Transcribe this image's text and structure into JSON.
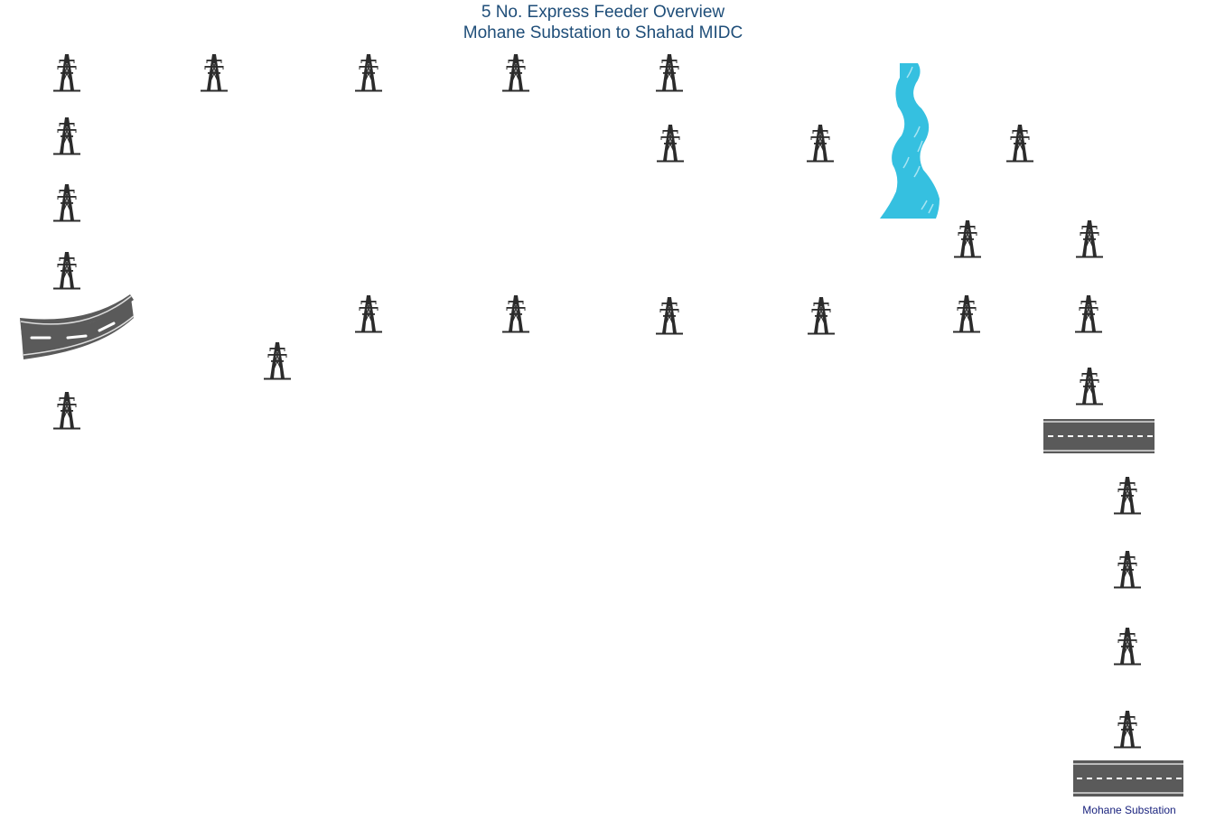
{
  "diagram": {
    "title_line1": "5 No. Express Feeder Overview",
    "title_line2": "Mohane Substation to Shahad MIDC",
    "substation_label": "Mohane Substation",
    "colors": {
      "title": "#1f4e79",
      "tower": "#2b2b2b",
      "river": "#35c0e0",
      "road": "#5a5a5a",
      "road_marking": "#ffffff",
      "label": "#1a237e"
    },
    "icons": {
      "tower": "transmission-tower-icon",
      "river": "river-icon",
      "road": "road-icon"
    },
    "tower_count": 30
  }
}
